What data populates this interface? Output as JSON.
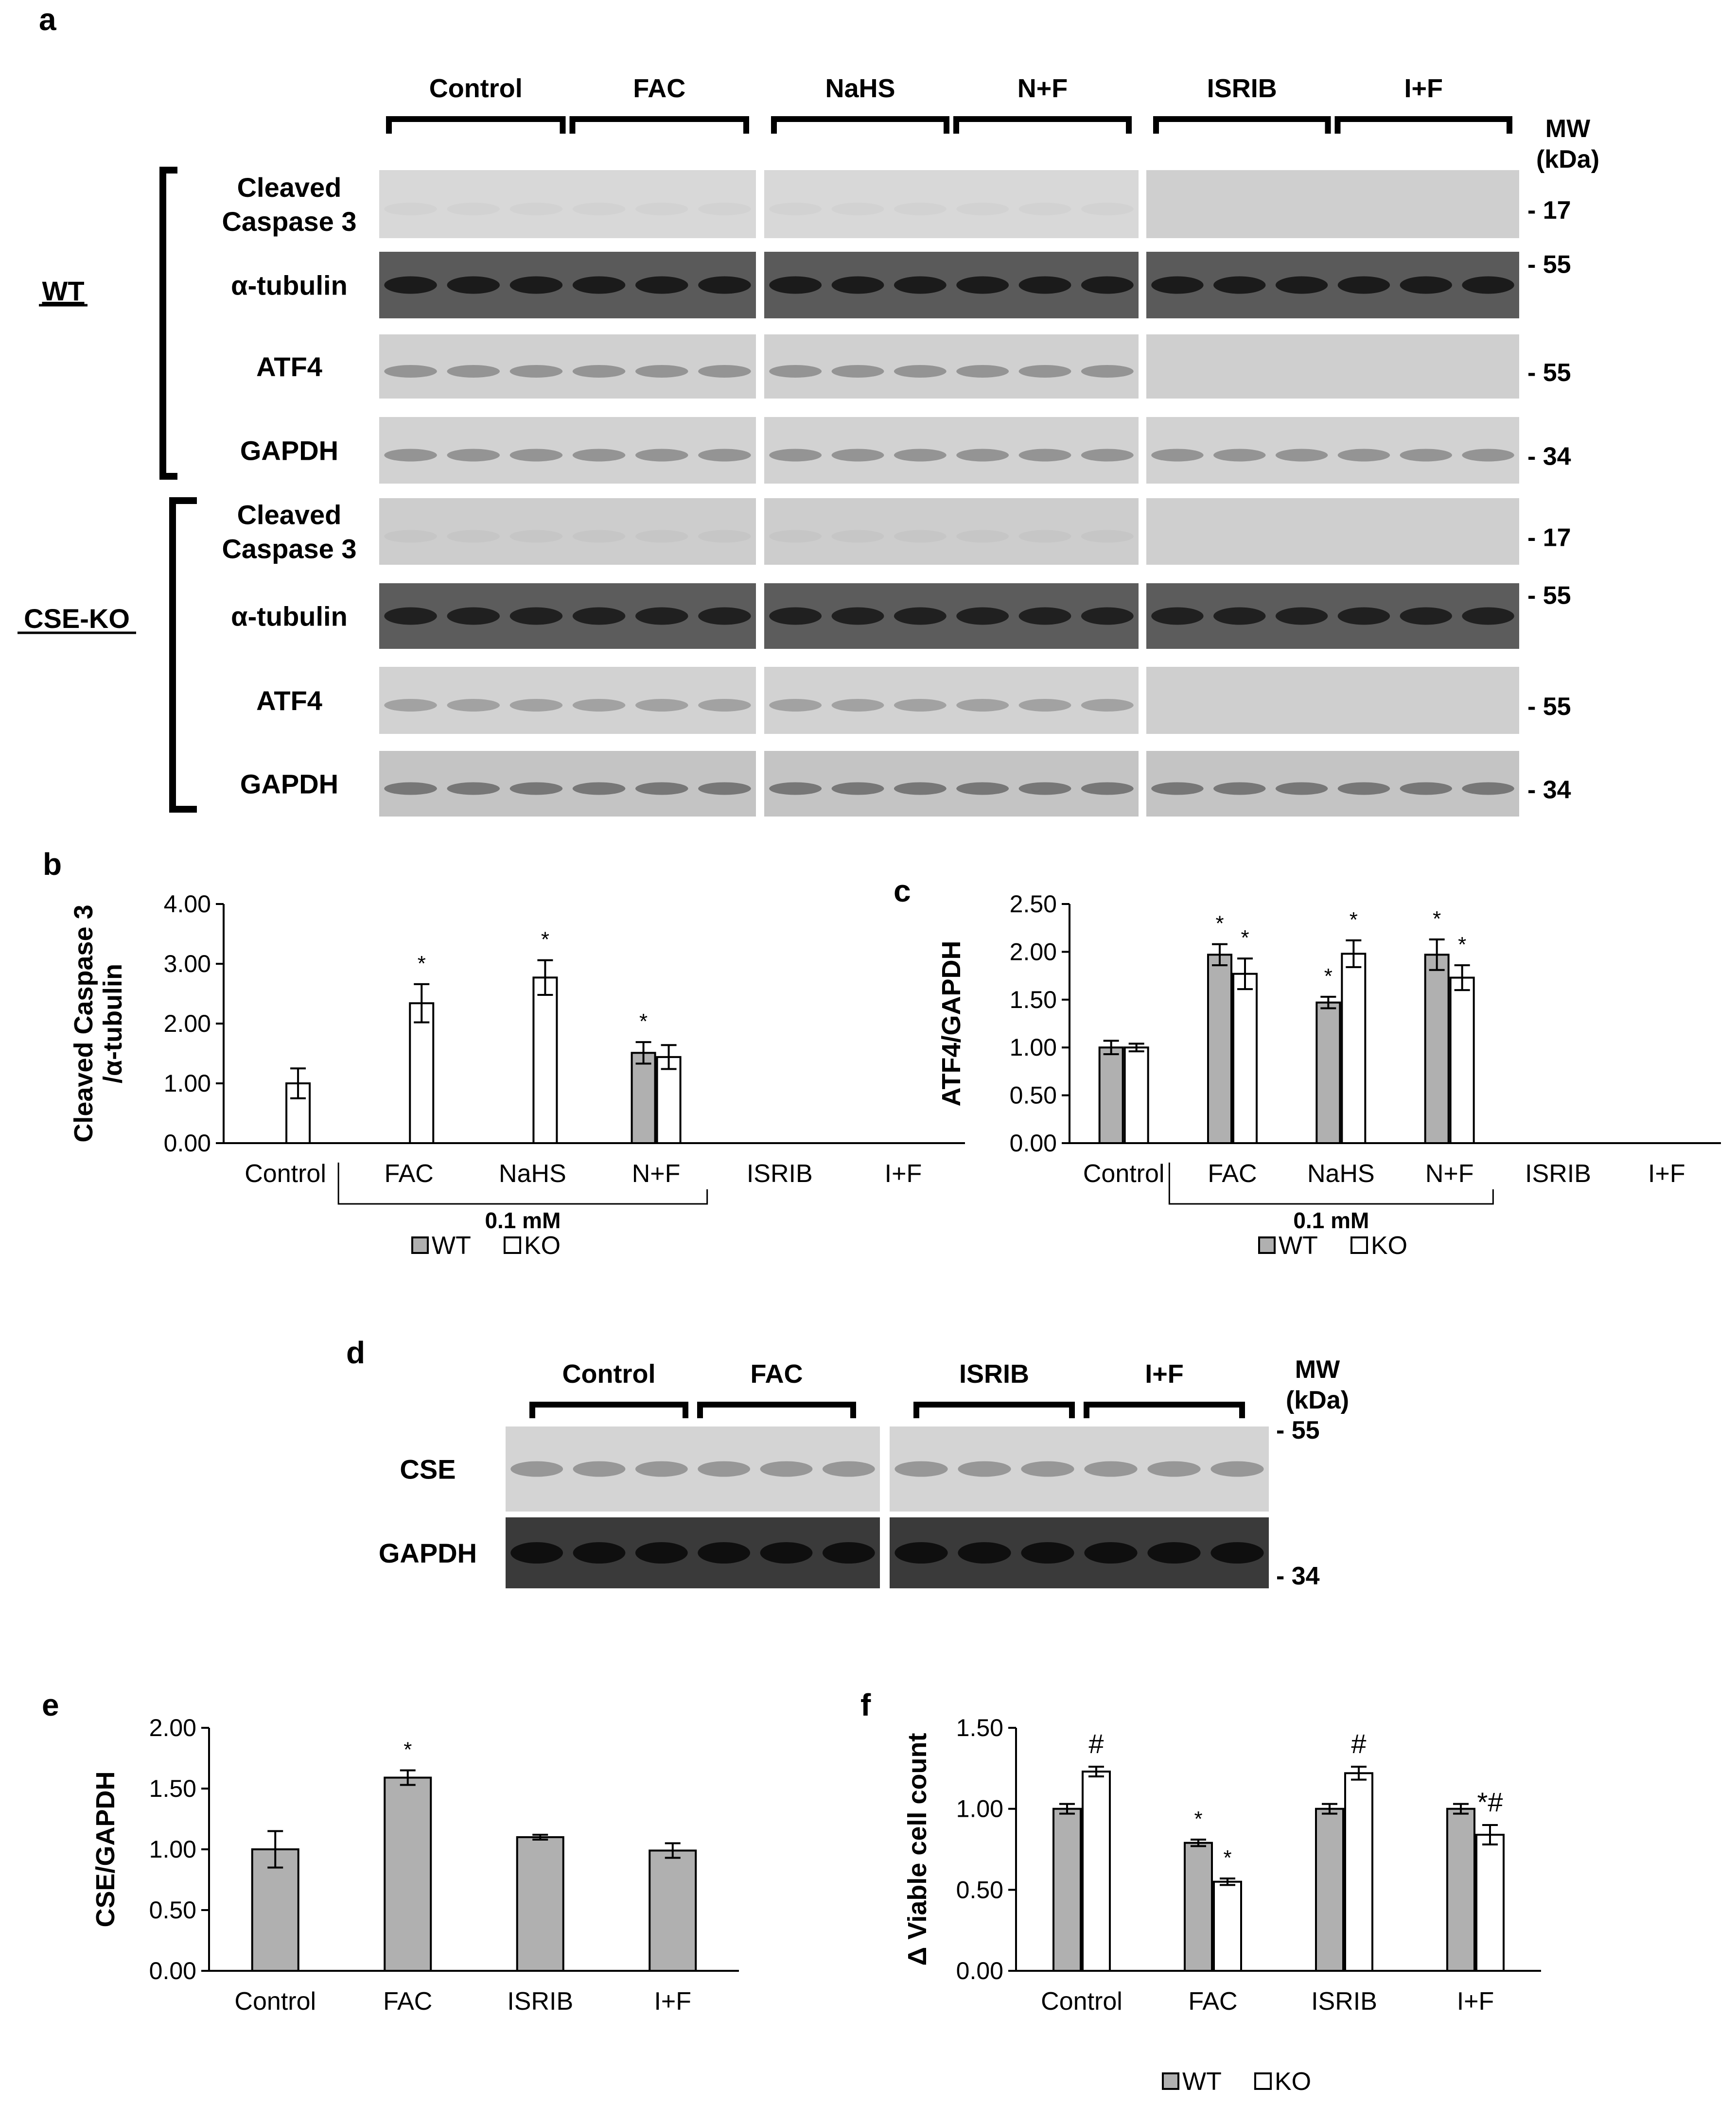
{
  "panel_labels": {
    "a": "a",
    "b": "b",
    "c": "c",
    "d": "d",
    "e": "e",
    "f": "f"
  },
  "blot_a": {
    "groups": [
      "Control",
      "FAC",
      "NaHS",
      "N+F",
      "ISRIB",
      "I+F"
    ],
    "mw_title": [
      "MW",
      "(kDa)"
    ],
    "genotypes": [
      "WT",
      "CSE-KO"
    ],
    "rows": [
      {
        "label": [
          "Cleaved",
          "Caspase 3"
        ],
        "mw": "- 17",
        "genotype": "WT"
      },
      {
        "label": [
          "α-tubulin"
        ],
        "mw": "- 55",
        "genotype": "WT"
      },
      {
        "label": [
          "ATF4"
        ],
        "mw": "- 55",
        "genotype": "WT"
      },
      {
        "label": [
          "GAPDH"
        ],
        "mw": "- 34",
        "genotype": "WT"
      },
      {
        "label": [
          "Cleaved",
          "Caspase 3"
        ],
        "mw": "- 17",
        "genotype": "CSE-KO"
      },
      {
        "label": [
          "α-tubulin"
        ],
        "mw": "- 55",
        "genotype": "CSE-KO"
      },
      {
        "label": [
          "ATF4"
        ],
        "mw": "- 55",
        "genotype": "CSE-KO"
      },
      {
        "label": [
          "GAPDH"
        ],
        "mw": "- 34",
        "genotype": "CSE-KO"
      }
    ],
    "lanes_per_group": 3
  },
  "blot_d": {
    "groups": [
      "Control",
      "FAC",
      "ISRIB",
      "I+F"
    ],
    "mw_title": [
      "MW",
      "(kDa)"
    ],
    "rows": [
      {
        "label": "CSE",
        "mw": "- 55"
      },
      {
        "label": "GAPDH",
        "mw": "- 34"
      }
    ],
    "lanes_per_group": 3
  },
  "colors": {
    "wt_bar": "#b0b0b0",
    "ko_bar": "#ffffff",
    "axis": "#000000"
  },
  "chart_data": [
    {
      "panel": "b",
      "type": "bar",
      "ylabel": [
        "Cleaved Caspase 3",
        "/α-tubulin"
      ],
      "ylim": [
        0,
        4
      ],
      "yticks": [
        "0.00",
        "1.00",
        "2.00",
        "3.00",
        "4.00"
      ],
      "categories": [
        "Control",
        "FAC",
        "NaHS",
        "N+F",
        "ISRIB",
        "I+F"
      ],
      "bracket_label": "0.1 mM",
      "series": [
        {
          "name": "WT",
          "values": [
            null,
            null,
            null,
            1.51,
            null,
            null
          ],
          "errors": [
            null,
            null,
            null,
            0.18,
            null,
            null
          ],
          "sig": [
            "",
            "",
            "",
            "*",
            "",
            ""
          ]
        },
        {
          "name": "KO",
          "values": [
            1.0,
            2.34,
            2.77,
            1.44,
            null,
            null
          ],
          "errors": [
            0.25,
            0.32,
            0.29,
            0.2,
            null,
            null
          ],
          "sig": [
            "",
            "*",
            "*",
            "",
            "",
            ""
          ]
        }
      ],
      "legend": [
        "WT",
        "KO"
      ],
      "legend_position": "bottom"
    },
    {
      "panel": "c",
      "type": "bar",
      "ylabel": "ATF4/GAPDH",
      "ylim": [
        0,
        2.5
      ],
      "yticks": [
        "0.00",
        "0.50",
        "1.00",
        "1.50",
        "2.00",
        "2.50"
      ],
      "categories": [
        "Control",
        "FAC",
        "NaHS",
        "N+F",
        "ISRIB",
        "I+F"
      ],
      "bracket_label": "0.1 mM",
      "series": [
        {
          "name": "WT",
          "values": [
            1.0,
            1.97,
            1.47,
            1.97,
            null,
            null
          ],
          "errors": [
            0.07,
            0.11,
            0.06,
            0.16,
            null,
            null
          ],
          "sig": [
            "",
            "*",
            "*",
            "*",
            "",
            ""
          ]
        },
        {
          "name": "KO",
          "values": [
            1.0,
            1.77,
            1.98,
            1.73,
            null,
            null
          ],
          "errors": [
            0.04,
            0.16,
            0.14,
            0.13,
            null,
            null
          ],
          "sig": [
            "",
            "*",
            "*",
            "*",
            "",
            ""
          ]
        }
      ],
      "legend": [
        "WT",
        "KO"
      ],
      "legend_position": "bottom"
    },
    {
      "panel": "e",
      "type": "bar",
      "ylabel": "CSE/GAPDH",
      "ylim": [
        0,
        2
      ],
      "yticks": [
        "0.00",
        "0.50",
        "1.00",
        "1.50",
        "2.00"
      ],
      "categories": [
        "Control",
        "FAC",
        "ISRIB",
        "I+F"
      ],
      "series": [
        {
          "name": "WT",
          "values": [
            1.0,
            1.59,
            1.1,
            0.99
          ],
          "errors": [
            0.15,
            0.06,
            0.02,
            0.06
          ],
          "sig": [
            "",
            "*",
            "",
            ""
          ]
        }
      ]
    },
    {
      "panel": "f",
      "type": "bar",
      "ylabel": "Δ Viable cell count",
      "ylim": [
        0,
        1.5
      ],
      "yticks": [
        "0.00",
        "0.50",
        "1.00",
        "1.50"
      ],
      "categories": [
        "Control",
        "FAC",
        "ISRIB",
        "I+F"
      ],
      "series": [
        {
          "name": "WT",
          "values": [
            1.0,
            0.79,
            1.0,
            1.0
          ],
          "errors": [
            0.03,
            0.02,
            0.03,
            0.03
          ],
          "sig": [
            "",
            "*",
            "",
            ""
          ]
        },
        {
          "name": "KO",
          "values": [
            1.23,
            0.55,
            1.22,
            0.84
          ],
          "errors": [
            0.03,
            0.02,
            0.04,
            0.06
          ],
          "sig": [
            "#",
            "*",
            "#",
            "*#"
          ]
        }
      ],
      "legend": [
        "WT",
        "KO"
      ],
      "legend_position": "bottom"
    }
  ]
}
